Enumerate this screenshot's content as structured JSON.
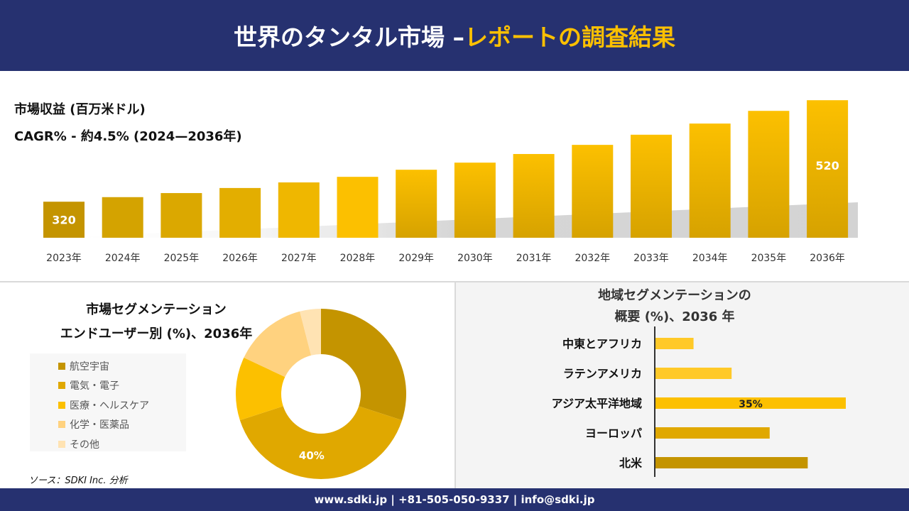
{
  "header": {
    "title_main": "世界のタンタル市場 –",
    "title_accent": "レポートの調査結果"
  },
  "colors": {
    "navy": "#263170",
    "accent": "#fcc000"
  },
  "footer": {
    "text": "www.sdki.jp | +81-505-050-9337 | info@sdki.jp"
  },
  "source": "ソース：SDKI Inc. 分析",
  "chart_data": [
    {
      "type": "bar",
      "title": "市場収益 (百万米ドル)",
      "subtitle": "CAGR% - 約4.5% (2024—2036年)",
      "categories": [
        "2023年",
        "2024年",
        "2025年",
        "2026年",
        "2027年",
        "2028年",
        "2029年",
        "2030年",
        "2031年",
        "2032年",
        "2033年",
        "2034年",
        "2035年",
        "2036年"
      ],
      "values": [
        320,
        329,
        337,
        347,
        358,
        369,
        383,
        397,
        414,
        432,
        452,
        474,
        499,
        520
      ],
      "data_labels": {
        "0": "320",
        "13": "520"
      },
      "colors": [
        "#c49400",
        "#d4a300",
        "#dba800",
        "#e3ae00",
        "#efb700",
        "#fcc000",
        "#fcc000",
        "#fcc000",
        "#fcc000",
        "#fcc000",
        "#fcc000",
        "#fcc000",
        "#fcc000",
        "#fcc000"
      ],
      "grid": false
    },
    {
      "type": "pie",
      "variant": "donut",
      "title": "市場セグメンテーション",
      "subtitle": "エンドユーザー別 (%)、2036年",
      "labels": [
        "航空宇宙",
        "電気・電子",
        "医療・ヘルスケア",
        "化学・医薬品",
        "その他"
      ],
      "values": [
        30,
        40,
        12,
        14,
        4
      ],
      "colors": [
        "#c49400",
        "#e0a800",
        "#fcc000",
        "#ffd27f",
        "#ffe3b3"
      ],
      "data_labels": {
        "1": "40%"
      },
      "legend": "left"
    },
    {
      "type": "bar",
      "orientation": "horizontal",
      "title": "地域セグメンテーションの",
      "subtitle": "概要 (%)、2036 年",
      "categories": [
        "中東とアフリカ",
        "ラテンアメリカ",
        "アジア太平洋地域",
        "ヨーロッパ",
        "北米"
      ],
      "values": [
        7,
        14,
        35,
        21,
        28
      ],
      "colors": [
        "#ffc928",
        "#ffc928",
        "#fcc000",
        "#e0a800",
        "#c49400"
      ],
      "data_labels": {
        "2": "35%"
      }
    }
  ]
}
